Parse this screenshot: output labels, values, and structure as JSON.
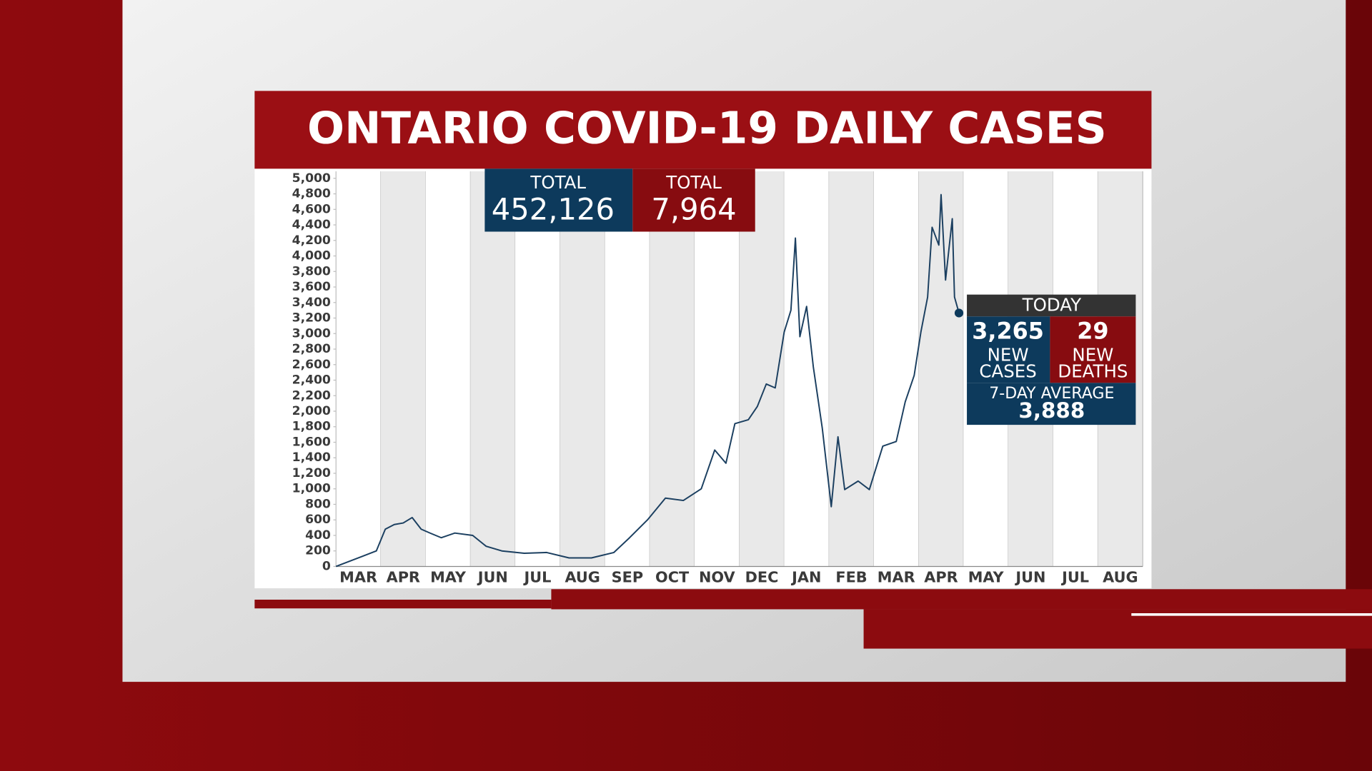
{
  "chart_data": {
    "type": "line",
    "title": "ONTARIO COVID-19 DAILY CASES",
    "categories": [
      "MAR",
      "APR",
      "MAY",
      "JUN",
      "JUL",
      "AUG",
      "SEP",
      "OCT",
      "NOV",
      "DEC",
      "JAN",
      "FEB",
      "MAR",
      "APR",
      "MAY",
      "JUN",
      "JUL",
      "AUG"
    ],
    "ylim": [
      0,
      5000
    ],
    "yticks": [
      0,
      200,
      400,
      600,
      800,
      {
        "value": 1000,
        "label": "1,000"
      },
      {
        "value": 1200,
        "label": "1,200"
      },
      {
        "value": 1400,
        "label": "1,400"
      },
      {
        "value": 1600,
        "label": "1,600"
      },
      {
        "value": 1800,
        "label": "1,800"
      },
      {
        "value": 2000,
        "label": "2,000"
      },
      {
        "value": 2200,
        "label": "2,200"
      },
      {
        "value": 2400,
        "label": "2,400"
      },
      {
        "value": 2600,
        "label": "2,600"
      },
      {
        "value": 2800,
        "label": "2,800"
      },
      {
        "value": 3000,
        "label": "3,000"
      },
      {
        "value": 3200,
        "label": "3,200"
      },
      {
        "value": 3400,
        "label": "3,400"
      },
      {
        "value": 3600,
        "label": "3,600"
      },
      {
        "value": 3800,
        "label": "3,800"
      },
      {
        "value": 4000,
        "label": "4,000"
      },
      {
        "value": 4200,
        "label": "4,200"
      },
      {
        "value": 4400,
        "label": "4,400"
      },
      {
        "value": 4600,
        "label": "4,600"
      },
      {
        "value": 4800,
        "label": "4,800"
      },
      {
        "value": 5000,
        "label": "5,000"
      }
    ],
    "series": [
      {
        "color": "#1b3f60",
        "x": [
          0,
          0.9,
          1.1,
          1.3,
          1.5,
          1.7,
          1.9,
          2.1,
          2.35,
          2.65,
          3.05,
          3.35,
          3.7,
          4.2,
          4.7,
          5.2,
          5.7,
          6.2,
          6.55,
          6.95,
          7.35,
          7.75,
          8.15,
          8.45,
          8.7,
          8.9,
          9.2,
          9.4,
          9.6,
          9.8,
          10.0,
          10.15,
          10.25,
          10.35,
          10.5,
          10.65,
          10.85,
          11.05,
          11.2,
          11.35,
          11.65,
          11.9,
          12.2,
          12.5,
          12.7,
          12.9,
          13.05,
          13.2,
          13.3,
          13.45,
          13.5,
          13.6,
          13.75,
          13.8,
          13.9
        ],
        "values": [
          0,
          200,
          480,
          540,
          560,
          630,
          480,
          430,
          370,
          430,
          400,
          260,
          200,
          170,
          180,
          110,
          110,
          180,
          370,
          600,
          880,
          850,
          1000,
          1500,
          1330,
          1840,
          1890,
          2060,
          2350,
          2300,
          3020,
          3300,
          4230,
          2960,
          3350,
          2570,
          1780,
          770,
          1670,
          990,
          1100,
          990,
          1550,
          1610,
          2120,
          2460,
          3020,
          3470,
          4370,
          4140,
          4790,
          3690,
          4480,
          3470,
          3265
        ]
      }
    ],
    "totals": [
      {
        "label": "TOTAL",
        "value": "452,126"
      },
      {
        "label": "TOTAL",
        "value": "7,964"
      }
    ],
    "today": {
      "header": "TODAY",
      "cases": "3,265",
      "cases_label": [
        "NEW",
        "CASES"
      ],
      "deaths": "29",
      "deaths_label": [
        "NEW",
        "DEATHS"
      ],
      "average_label": "7-DAY AVERAGE",
      "average": "3,888"
    }
  }
}
